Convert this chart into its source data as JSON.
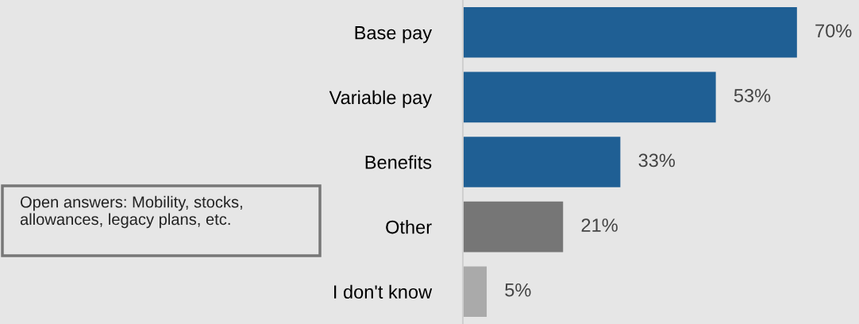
{
  "chart_data": {
    "type": "bar",
    "orientation": "horizontal",
    "categories": [
      "Base pay",
      "Variable pay",
      "Benefits",
      "Other",
      "I don't know"
    ],
    "values": [
      70,
      53,
      33,
      21,
      5
    ],
    "colors": [
      "#1f5f94",
      "#1f5f94",
      "#1f5f94",
      "#767676",
      "#aaaaaa"
    ],
    "value_labels": [
      "70%",
      "53%",
      "33%",
      "21%",
      "5%"
    ],
    "xlim": [
      0,
      83
    ],
    "tick_labels": "y",
    "grid": false,
    "legend": false,
    "annotations": [
      "Open answers: Mobility, stocks,\nallowances, legacy plans, etc."
    ]
  }
}
